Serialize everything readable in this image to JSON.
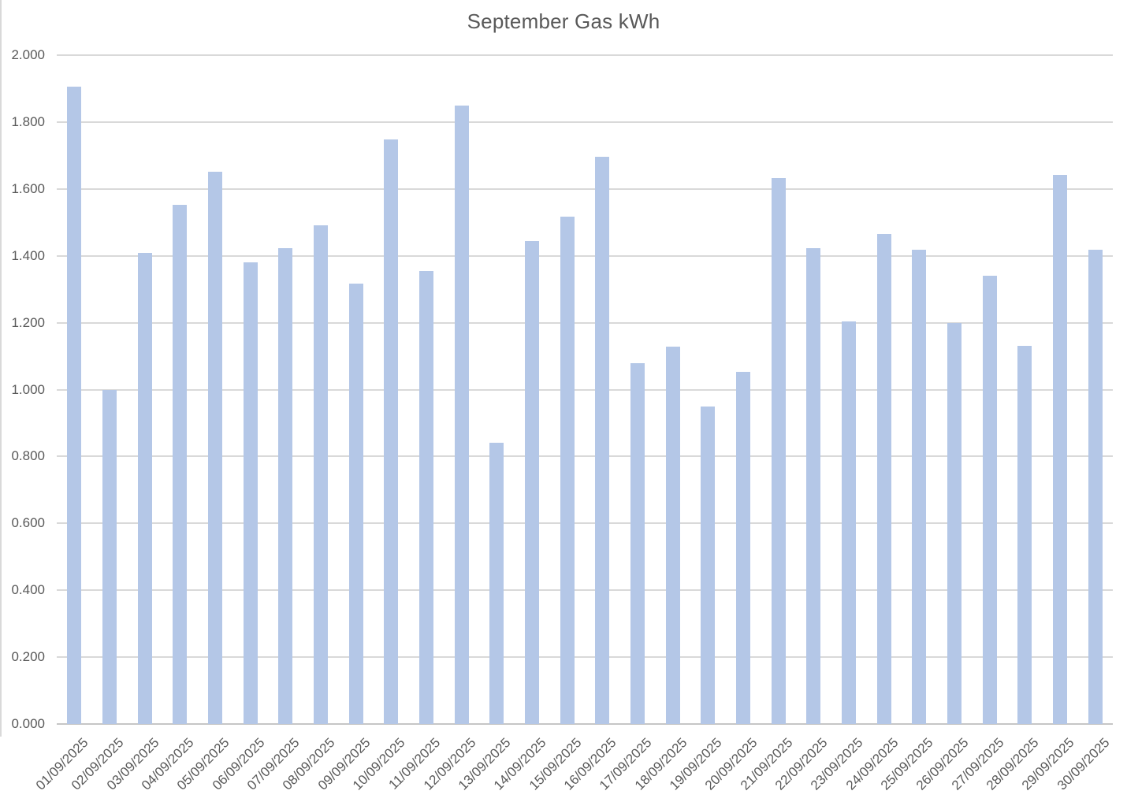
{
  "chart_data": {
    "type": "bar",
    "title": "September Gas kWh",
    "xlabel": "",
    "ylabel": "",
    "categories": [
      "01/09/2025",
      "02/09/2025",
      "03/09/2025",
      "04/09/2025",
      "05/09/2025",
      "06/09/2025",
      "07/09/2025",
      "08/09/2025",
      "09/09/2025",
      "10/09/2025",
      "11/09/2025",
      "12/09/2025",
      "13/09/2025",
      "14/09/2025",
      "15/09/2025",
      "16/09/2025",
      "17/09/2025",
      "18/09/2025",
      "19/09/2025",
      "20/09/2025",
      "21/09/2025",
      "22/09/2025",
      "23/09/2025",
      "24/09/2025",
      "25/09/2025",
      "26/09/2025",
      "27/09/2025",
      "28/09/2025",
      "29/09/2025",
      "30/09/2025"
    ],
    "values": [
      1.905,
      1.0,
      1.409,
      1.553,
      1.651,
      1.381,
      1.424,
      1.49,
      1.318,
      1.747,
      1.354,
      1.849,
      0.842,
      1.443,
      1.518,
      1.695,
      1.079,
      1.128,
      0.95,
      1.053,
      1.632,
      1.423,
      1.204,
      1.465,
      1.418,
      1.198,
      1.34,
      1.131,
      1.642,
      1.419
    ],
    "ylim": [
      0.0,
      2.0
    ],
    "ytick_step": 0.2,
    "ytick_labels": [
      "0.000",
      "0.200",
      "0.400",
      "0.600",
      "0.800",
      "1.000",
      "1.200",
      "1.400",
      "1.600",
      "1.800",
      "2.000"
    ],
    "x_label_rotation": -45,
    "grid": true,
    "legend": "none",
    "colors": {
      "bar": "#b4c7e7",
      "gridline": "#d9d9d9",
      "axis_line": "#c6c6c6",
      "text": "#595959",
      "background": "#ffffff",
      "window_border": "#d9d9d9"
    }
  }
}
